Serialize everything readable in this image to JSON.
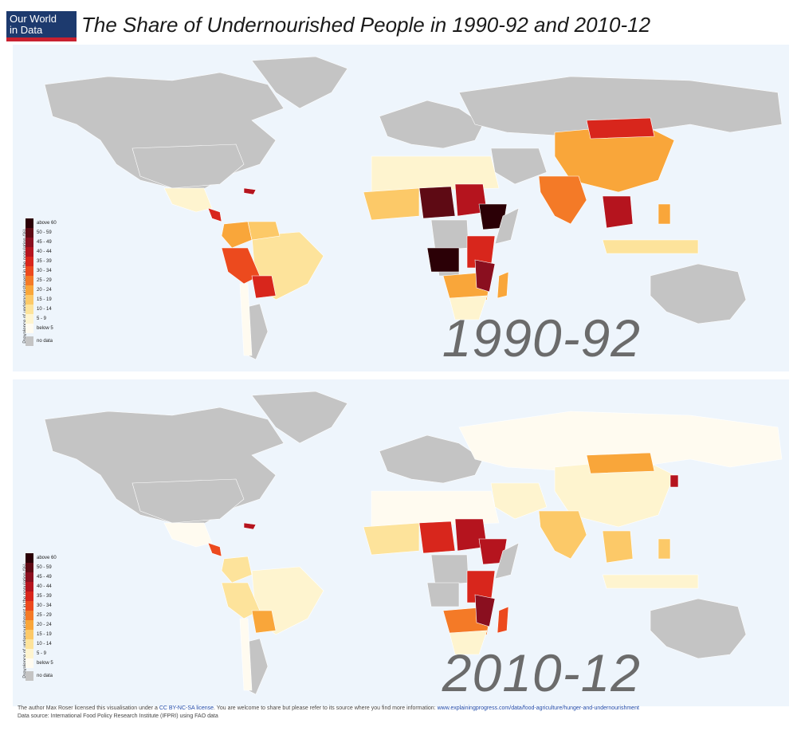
{
  "header": {
    "logo_line1": "Our World",
    "logo_line2": "in Data",
    "title": "The Share of Undernourished People in 1990-92 and 2010-12"
  },
  "legend": {
    "axis_label": "Prevalence of undernourishment in the population (%)",
    "items": [
      {
        "label": "above 60",
        "color": "#2b0006"
      },
      {
        "label": "50 - 59",
        "color": "#5e0a14"
      },
      {
        "label": "45 - 49",
        "color": "#8a0f1f"
      },
      {
        "label": "40 - 44",
        "color": "#b5141e"
      },
      {
        "label": "35 - 39",
        "color": "#d8261c"
      },
      {
        "label": "30 - 34",
        "color": "#ec4a1e"
      },
      {
        "label": "25 - 29",
        "color": "#f47a27"
      },
      {
        "label": "20 - 24",
        "color": "#f9a63a"
      },
      {
        "label": "15 - 19",
        "color": "#fcc968"
      },
      {
        "label": "10 - 14",
        "color": "#fde39b"
      },
      {
        "label": "5 - 9",
        "color": "#fef4cf"
      },
      {
        "label": "below 5",
        "color": "#fffbf0"
      },
      {
        "label": "no data",
        "color": "#c4c4c4"
      }
    ]
  },
  "maps": [
    {
      "period": "1990-92"
    },
    {
      "period": "2010-12"
    }
  ],
  "footer": {
    "line1_pre": "The author Max Roser licensed this visualisation under a ",
    "license": "CC BY-NC-SA license",
    "line1_mid": ". You are welcome to share but please refer to its source where you find more information: ",
    "url": "www.explainingprogress.com/data/food-agriculture/hunger-and-undernourishment",
    "line2": "Data source: International Food Policy Research Institute (IFPRI) using FAO data"
  },
  "colors": {
    "ocean": "#eef5fc",
    "nodata": "#c4c4c4"
  }
}
